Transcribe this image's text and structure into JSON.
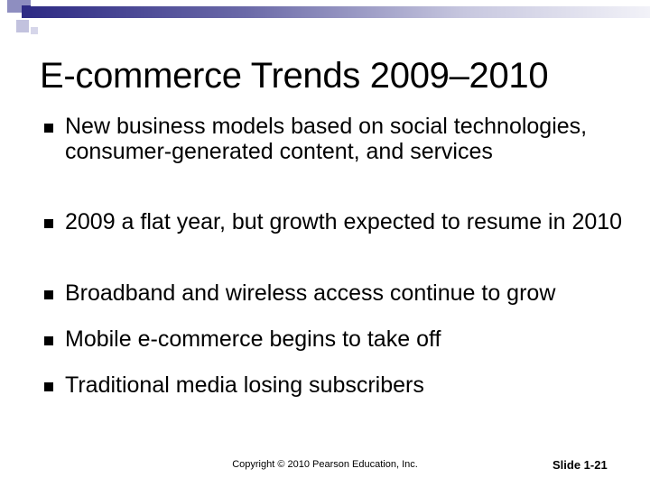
{
  "slide": {
    "title": "E-commerce Trends 2009–2010",
    "bullets": [
      "New business models based on social technologies,  consumer-generated content, and services",
      "2009 a flat year, but growth expected to resume in 2010",
      "Broadband and wireless access continue to grow",
      "Mobile e-commerce begins to take off",
      "Traditional media losing subscribers"
    ],
    "copyright": "Copyright © 2010 Pearson Education, Inc.",
    "slide_number": "Slide 1-21"
  },
  "colors": {
    "accent_dark": "#2f2c85",
    "accent_light": "#c7c7df",
    "background": "#ffffff",
    "text": "#000000"
  }
}
